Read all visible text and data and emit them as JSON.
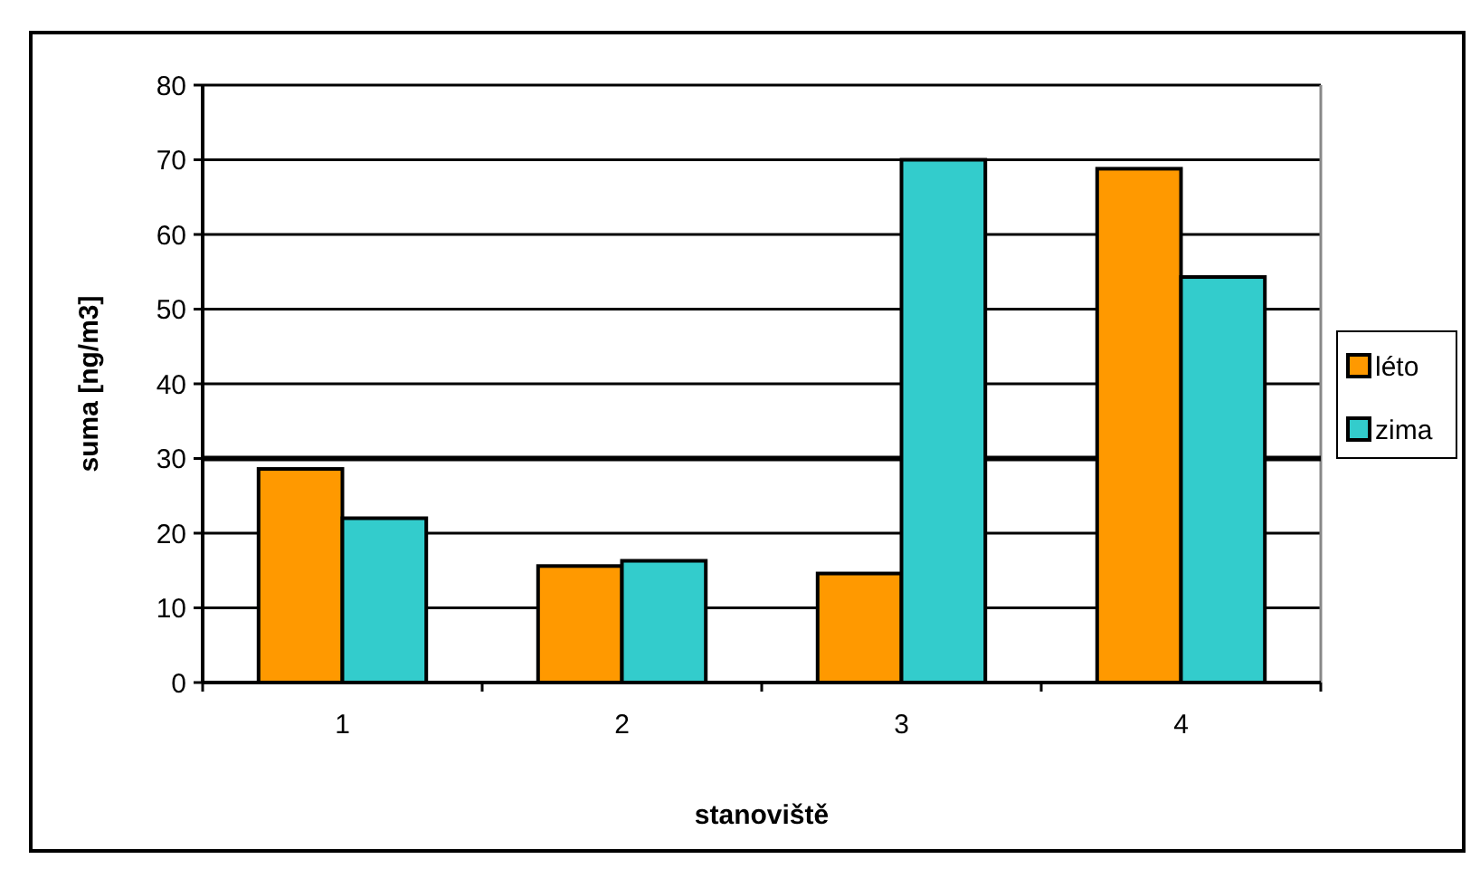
{
  "chart_data": {
    "type": "bar",
    "xlabel": "stanoviště",
    "ylabel": "suma [ng/m3]",
    "categories": [
      "1",
      "2",
      "3",
      "4"
    ],
    "series": [
      {
        "name": "léto",
        "color": "#ff9900",
        "values": [
          28.6,
          15.6,
          14.6,
          68.8
        ]
      },
      {
        "name": "zima",
        "color": "#33cccc",
        "values": [
          22,
          16.3,
          70,
          54.3
        ]
      }
    ],
    "ylim": [
      0,
      80
    ],
    "yticks": [
      0,
      10,
      20,
      30,
      40,
      50,
      60,
      70,
      80
    ],
    "grid": "y",
    "legend": "right",
    "ref_lines": [
      {
        "axis": "y",
        "value": 30,
        "color": "#000000"
      }
    ]
  }
}
